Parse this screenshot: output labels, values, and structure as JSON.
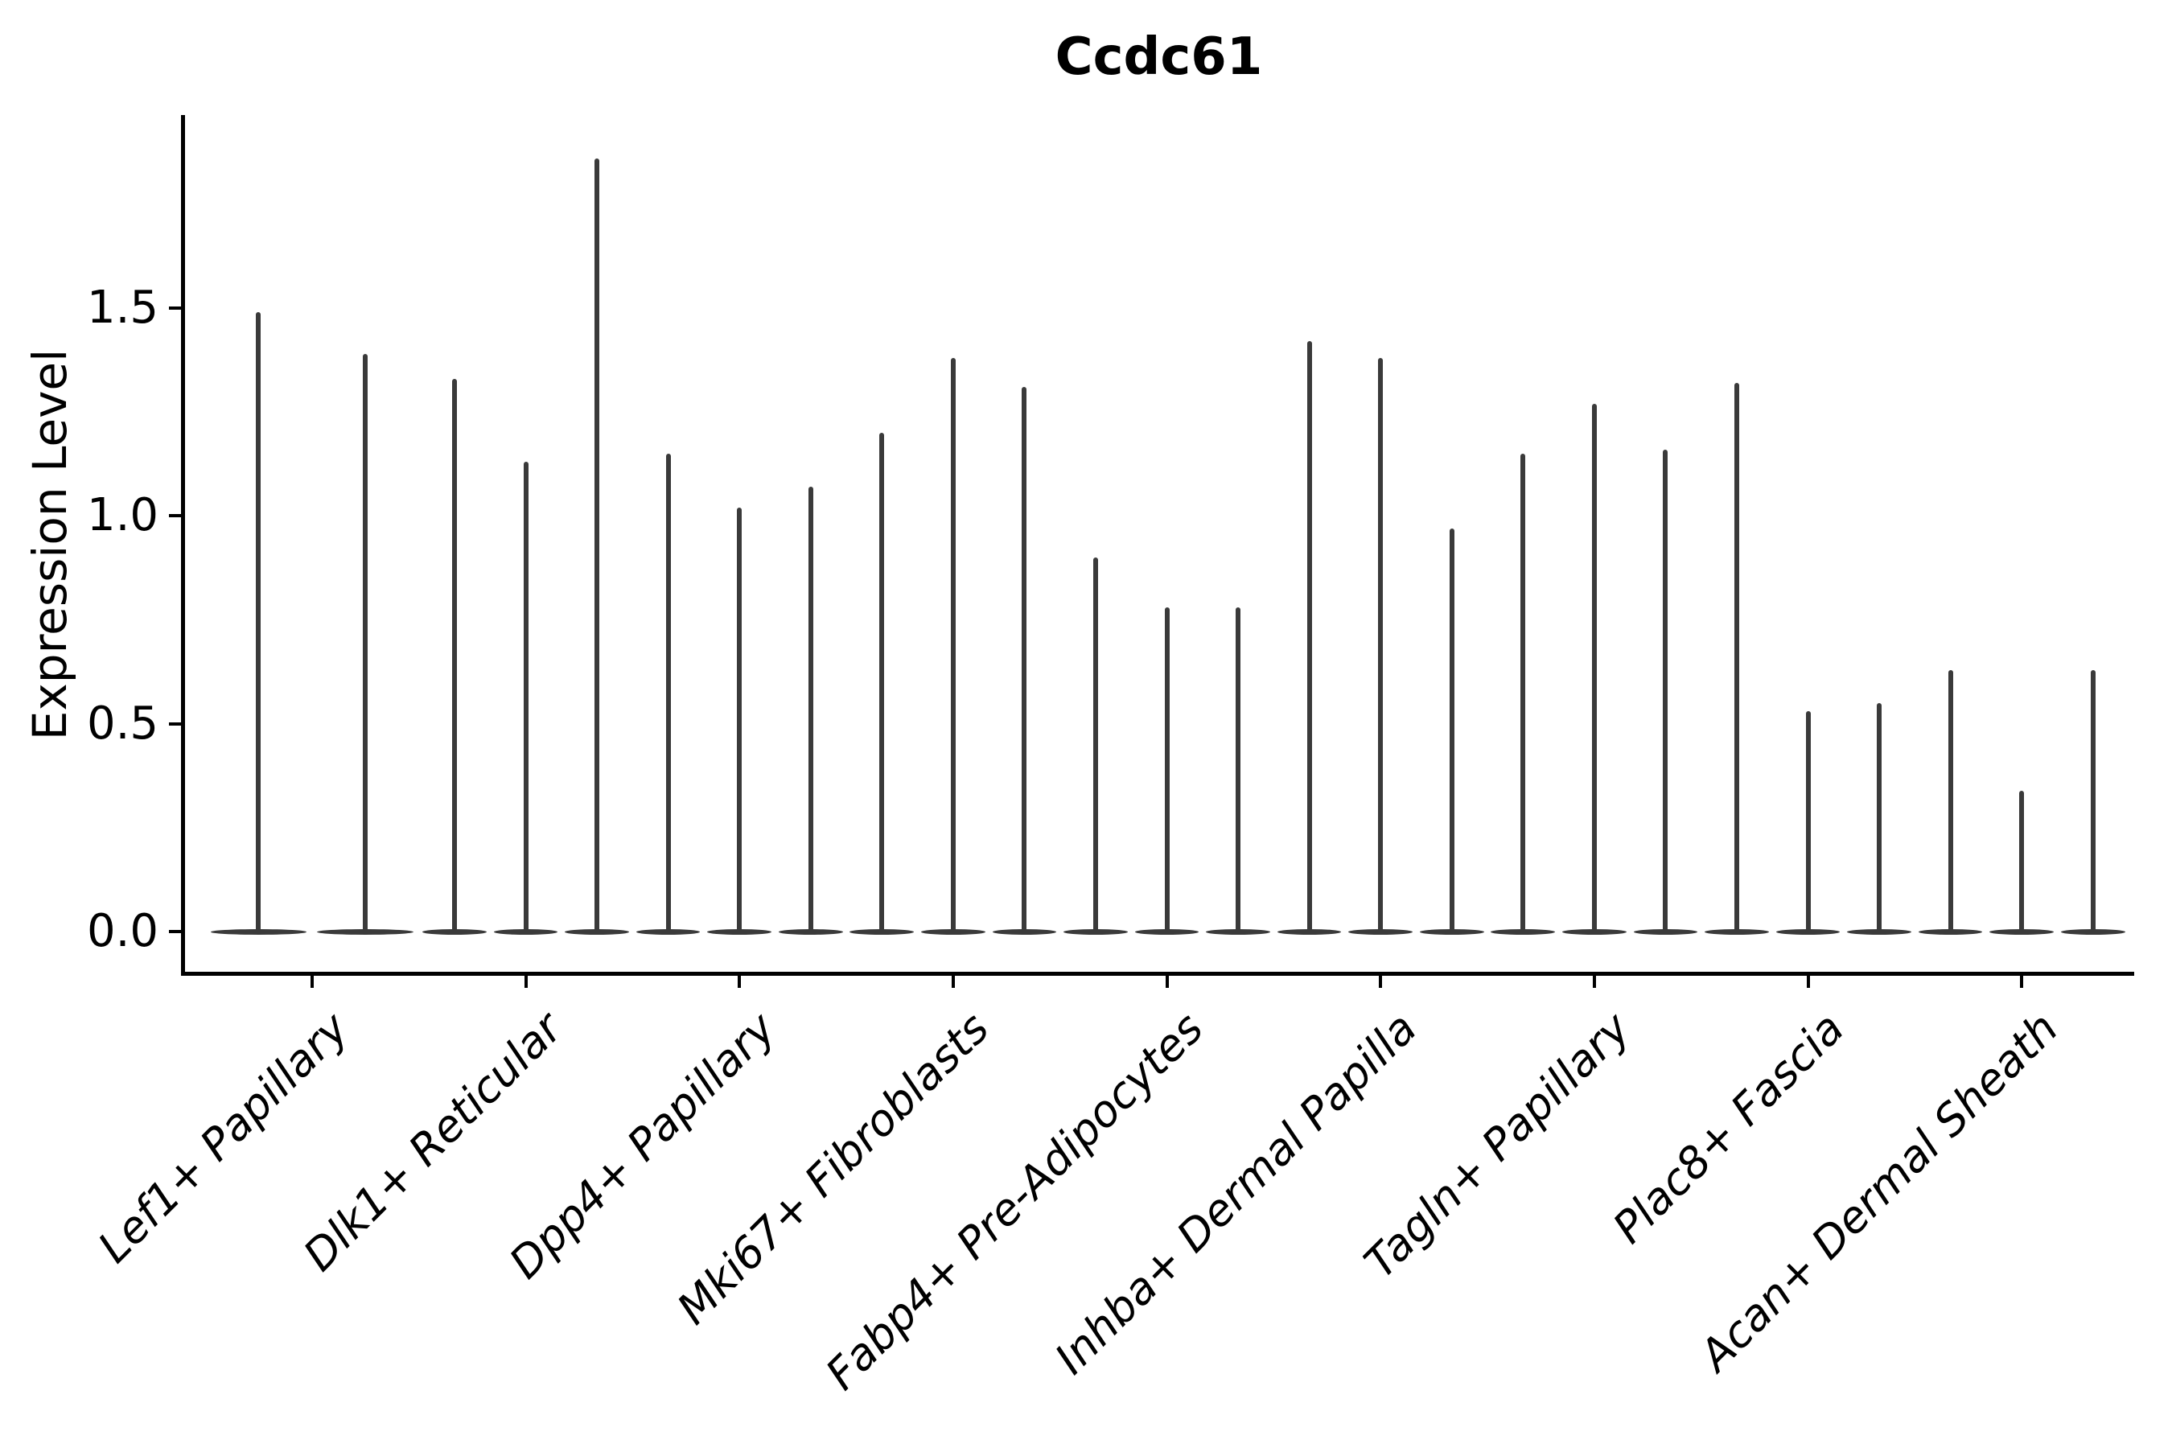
{
  "chart_data": {
    "type": "violin",
    "title": "Ccdc61",
    "ylabel": "Expression Level",
    "xlabel": "",
    "ytick_values": [
      0.0,
      0.5,
      1.0,
      1.5
    ],
    "ytick_labels": [
      "0.0",
      "0.5",
      "1.0",
      "1.5"
    ],
    "ylim": [
      -0.1,
      1.96
    ],
    "grid": false,
    "legend": "none",
    "violin_color": "#3a3a3a",
    "axis_color": "#000000",
    "note": "Thin violins: expression mass concentrated at 0 with narrow tails; values below are the max (tail tip) expression level per violin",
    "categories": [
      "Lef1+ Papillary",
      "Dlk1+ Reticular",
      "Dpp4+ Papillary",
      "Mki67+ Fibroblasts",
      "Fabp4+ Pre-Adipocytes",
      "Inhba+ Dermal Papilla",
      "Tagln+ Papillary",
      "Plac8+ Fascia",
      "Acan+ Dermal Sheath"
    ],
    "groups": [
      {
        "label": "Lef1+ Papillary",
        "violin_max_values": [
          1.49,
          1.39
        ]
      },
      {
        "label": "Dlk1+ Reticular",
        "violin_max_values": [
          1.33,
          1.13,
          1.86
        ]
      },
      {
        "label": "Dpp4+ Papillary",
        "violin_max_values": [
          1.15,
          1.02,
          1.07
        ]
      },
      {
        "label": "Mki67+ Fibroblasts",
        "violin_max_values": [
          1.2,
          1.38,
          1.31
        ]
      },
      {
        "label": "Fabp4+ Pre-Adipocytes",
        "violin_max_values": [
          0.9,
          0.78,
          0.78
        ]
      },
      {
        "label": "Inhba+ Dermal Papilla",
        "violin_max_values": [
          1.42,
          1.38,
          0.97
        ]
      },
      {
        "label": "Tagln+ Papillary",
        "violin_max_values": [
          1.15,
          1.27,
          1.16
        ]
      },
      {
        "label": "Plac8+ Fascia",
        "violin_max_values": [
          1.32,
          0.53,
          0.55
        ]
      },
      {
        "label": "Acan+ Dermal Sheath",
        "violin_max_values": [
          0.63,
          0.34,
          0.63
        ]
      }
    ]
  }
}
